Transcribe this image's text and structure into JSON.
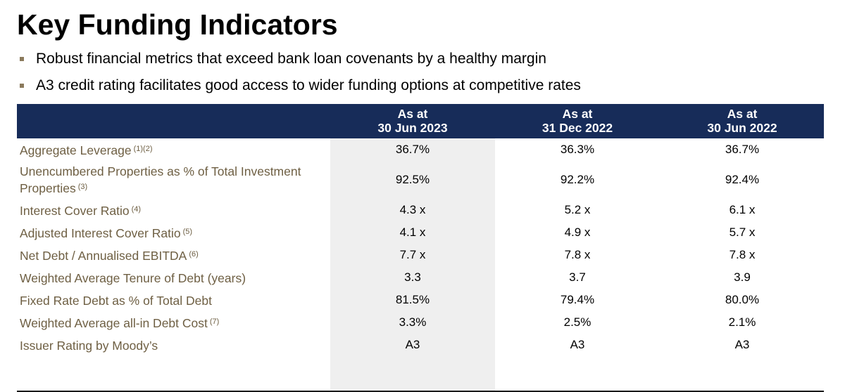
{
  "title": "Key Funding Indicators",
  "bullets": [
    "Robust financial metrics that exceed bank loan covenants by a healthy margin",
    "A3 credit rating facilitates good access to wider funding options at competitive rates"
  ],
  "table": {
    "columns": [
      {
        "line1": "As at",
        "line2": "30 Jun 2023"
      },
      {
        "line1": "As at",
        "line2": "31 Dec 2022"
      },
      {
        "line1": "As at",
        "line2": "30 Jun 2022"
      }
    ],
    "rows": [
      {
        "label": "Aggregate Leverage",
        "note": "(1)(2)",
        "values": [
          "36.7%",
          "36.3%",
          "36.7%"
        ]
      },
      {
        "label": "Unencumbered Properties as % of Total Investment Properties",
        "note": "(3)",
        "values": [
          "92.5%",
          "92.2%",
          "92.4%"
        ]
      },
      {
        "label": "Interest Cover Ratio",
        "note": "(4)",
        "values": [
          "4.3 x",
          "5.2 x",
          "6.1 x"
        ]
      },
      {
        "label": "Adjusted Interest Cover Ratio",
        "note": "(5)",
        "values": [
          "4.1 x",
          "4.9 x",
          "5.7 x"
        ]
      },
      {
        "label": "Net Debt / Annualised EBITDA",
        "note": "(6)",
        "values": [
          "7.7 x",
          "7.8 x",
          "7.8 x"
        ]
      },
      {
        "label": "Weighted Average Tenure of Debt (years)",
        "note": "",
        "values": [
          "3.3",
          "3.7",
          "3.9"
        ]
      },
      {
        "label": "Fixed Rate Debt as % of Total Debt",
        "note": "",
        "values": [
          "81.5%",
          "79.4%",
          "80.0%"
        ]
      },
      {
        "label": "Weighted Average all-in Debt Cost",
        "note": "(7)",
        "values": [
          "3.3%",
          "2.5%",
          "2.1%"
        ]
      },
      {
        "label": "Issuer Rating by Moody’s",
        "note": "",
        "values": [
          "A3",
          "A3",
          "A3"
        ]
      }
    ]
  },
  "colors": {
    "header_bg": "#172c59",
    "label_text": "#6e5f43",
    "bullet_marker": "#8b7a5c",
    "shaded_column": "#efefef"
  }
}
